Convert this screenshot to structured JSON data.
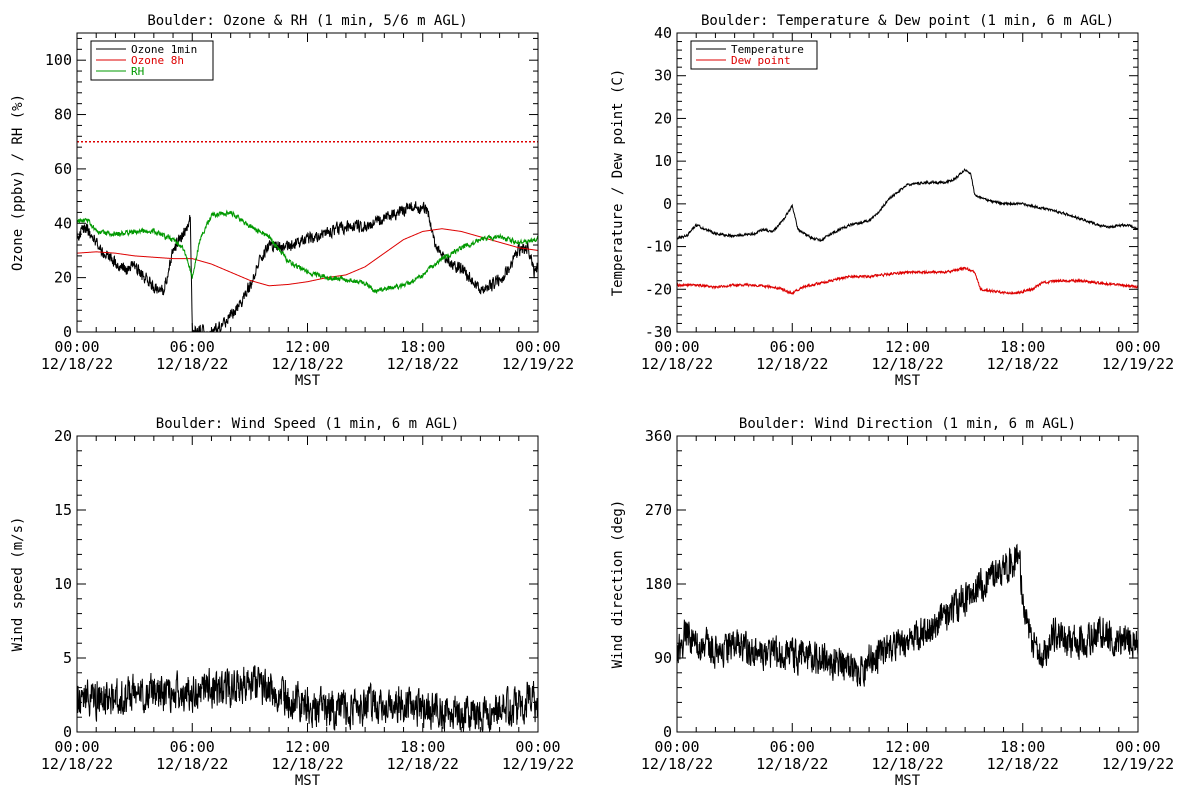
{
  "chart_data": [
    {
      "id": "ozone",
      "type": "line",
      "title": "Boulder: Ozone & RH (1 min, 5/6 m AGL)",
      "xlabel": "MST",
      "ylabel": "Ozone (ppbv) / RH (%)",
      "xlim": [
        0,
        24
      ],
      "ylim": [
        0,
        110
      ],
      "yticks": [
        0,
        20,
        40,
        60,
        80,
        100
      ],
      "xticks": [
        {
          "x": 0,
          "time": "00:00",
          "date": "12/18/22"
        },
        {
          "x": 6,
          "time": "06:00",
          "date": "12/18/22"
        },
        {
          "x": 12,
          "time": "12:00",
          "date": "12/18/22"
        },
        {
          "x": 18,
          "time": "18:00",
          "date": "12/18/22"
        },
        {
          "x": 24,
          "time": "00:00",
          "date": "12/19/22"
        }
      ],
      "legend": "top-left",
      "reference_line": {
        "y": 70,
        "color": "#dd0000",
        "style": "dotted"
      },
      "series": [
        {
          "name": "Ozone 1min",
          "color": "#000000",
          "noise": 2.0,
          "points": [
            [
              0,
              36
            ],
            [
              0.5,
              38
            ],
            [
              1,
              33
            ],
            [
              1.5,
              28
            ],
            [
              2,
              25
            ],
            [
              2.5,
              23
            ],
            [
              3,
              24
            ],
            [
              3.5,
              20
            ],
            [
              4,
              17
            ],
            [
              4.5,
              15
            ],
            [
              5,
              30
            ],
            [
              5.5,
              36
            ],
            [
              5.9,
              42
            ],
            [
              6.0,
              2
            ],
            [
              6.2,
              0
            ],
            [
              6.8,
              0
            ],
            [
              7.5,
              2
            ],
            [
              8,
              6
            ],
            [
              8.5,
              10
            ],
            [
              9,
              17
            ],
            [
              9.5,
              26
            ],
            [
              10,
              32
            ],
            [
              11,
              31
            ],
            [
              12,
              34
            ],
            [
              13,
              37
            ],
            [
              14,
              39
            ],
            [
              15,
              39
            ],
            [
              16,
              42
            ],
            [
              17,
              45
            ],
            [
              18,
              46
            ],
            [
              18.3,
              44
            ],
            [
              18.6,
              34
            ],
            [
              19,
              28
            ],
            [
              19.5,
              25
            ],
            [
              20,
              23
            ],
            [
              20.5,
              20
            ],
            [
              21,
              16
            ],
            [
              21.5,
              17
            ],
            [
              22,
              19
            ],
            [
              22.5,
              24
            ],
            [
              23,
              30
            ],
            [
              23.5,
              31
            ],
            [
              23.8,
              22
            ],
            [
              24,
              25
            ]
          ]
        },
        {
          "name": "Ozone 8h",
          "color": "#dd0000",
          "noise": 0,
          "points": [
            [
              0,
              29
            ],
            [
              1,
              29.5
            ],
            [
              2,
              29
            ],
            [
              3,
              28
            ],
            [
              4,
              27.5
            ],
            [
              5,
              27
            ],
            [
              6,
              27
            ],
            [
              7,
              25
            ],
            [
              8,
              22
            ],
            [
              9,
              19
            ],
            [
              10,
              17
            ],
            [
              11,
              17.5
            ],
            [
              12,
              18.5
            ],
            [
              13,
              20
            ],
            [
              14,
              21
            ],
            [
              15,
              24
            ],
            [
              16,
              29
            ],
            [
              17,
              34
            ],
            [
              18,
              37
            ],
            [
              19,
              38
            ],
            [
              20,
              37
            ],
            [
              21,
              35
            ],
            [
              22,
              33
            ],
            [
              23,
              31
            ],
            [
              24,
              30
            ]
          ]
        },
        {
          "name": "RH",
          "color": "#009900",
          "noise": 0.8,
          "points": [
            [
              0,
              41
            ],
            [
              0.6,
              41
            ],
            [
              1,
              37
            ],
            [
              2,
              36
            ],
            [
              3,
              37
            ],
            [
              4,
              37
            ],
            [
              5,
              34
            ],
            [
              5.6,
              30
            ],
            [
              6,
              20
            ],
            [
              6.4,
              34
            ],
            [
              7,
              43
            ],
            [
              8,
              44
            ],
            [
              9,
              39
            ],
            [
              10,
              35
            ],
            [
              11,
              26
            ],
            [
              12,
              22
            ],
            [
              13,
              20
            ],
            [
              14,
              19.5
            ],
            [
              15,
              18
            ],
            [
              15.5,
              15
            ],
            [
              16,
              16
            ],
            [
              17,
              17
            ],
            [
              18,
              21
            ],
            [
              19,
              27
            ],
            [
              20,
              31
            ],
            [
              21,
              34
            ],
            [
              22,
              35
            ],
            [
              23,
              33
            ],
            [
              24,
              34
            ]
          ]
        }
      ]
    },
    {
      "id": "temp",
      "type": "line",
      "title": "Boulder: Temperature & Dew point (1 min, 6 m AGL)",
      "xlabel": "MST",
      "ylabel": "Temperature / Dew point (C)",
      "xlim": [
        0,
        24
      ],
      "ylim": [
        -30,
        40
      ],
      "yticks": [
        -30,
        -20,
        -10,
        0,
        10,
        20,
        30,
        40
      ],
      "xticks": [
        {
          "x": 0,
          "time": "00:00",
          "date": "12/18/22"
        },
        {
          "x": 6,
          "time": "06:00",
          "date": "12/18/22"
        },
        {
          "x": 12,
          "time": "12:00",
          "date": "12/18/22"
        },
        {
          "x": 18,
          "time": "18:00",
          "date": "12/18/22"
        },
        {
          "x": 24,
          "time": "00:00",
          "date": "12/19/22"
        }
      ],
      "legend": "top-left",
      "series": [
        {
          "name": "Temperature",
          "color": "#000000",
          "noise": 0.25,
          "points": [
            [
              0,
              -8
            ],
            [
              0.5,
              -7.5
            ],
            [
              1,
              -5
            ],
            [
              1.5,
              -6
            ],
            [
              2,
              -7
            ],
            [
              3,
              -7.5
            ],
            [
              4,
              -7
            ],
            [
              4.5,
              -6
            ],
            [
              5,
              -6.5
            ],
            [
              5.5,
              -4
            ],
            [
              6,
              -0.5
            ],
            [
              6.3,
              -6
            ],
            [
              7,
              -8
            ],
            [
              7.5,
              -8.5
            ],
            [
              8,
              -7
            ],
            [
              9,
              -5
            ],
            [
              10,
              -4
            ],
            [
              10.5,
              -2
            ],
            [
              11,
              1
            ],
            [
              12,
              4.5
            ],
            [
              13,
              5
            ],
            [
              14,
              5
            ],
            [
              14.5,
              6
            ],
            [
              15,
              8
            ],
            [
              15.3,
              7
            ],
            [
              15.5,
              2
            ],
            [
              16,
              1
            ],
            [
              17,
              0
            ],
            [
              18,
              0
            ],
            [
              19,
              -1
            ],
            [
              20,
              -2
            ],
            [
              21,
              -3.5
            ],
            [
              22,
              -5
            ],
            [
              22.5,
              -5.5
            ],
            [
              23,
              -5
            ],
            [
              23.5,
              -5
            ],
            [
              24,
              -6
            ]
          ]
        },
        {
          "name": "Dew point",
          "color": "#dd0000",
          "noise": 0.25,
          "points": [
            [
              0,
              -19
            ],
            [
              1,
              -19
            ],
            [
              2,
              -19.5
            ],
            [
              3,
              -19
            ],
            [
              4,
              -19
            ],
            [
              5,
              -19.5
            ],
            [
              5.5,
              -20
            ],
            [
              6,
              -21
            ],
            [
              6.5,
              -19.5
            ],
            [
              7,
              -19
            ],
            [
              8,
              -18
            ],
            [
              9,
              -17
            ],
            [
              10,
              -17
            ],
            [
              11,
              -16.5
            ],
            [
              12,
              -16
            ],
            [
              13,
              -16
            ],
            [
              14,
              -16
            ],
            [
              15,
              -15
            ],
            [
              15.5,
              -16
            ],
            [
              15.8,
              -20
            ],
            [
              16.5,
              -20.5
            ],
            [
              17.5,
              -21
            ],
            [
              18.5,
              -20
            ],
            [
              19,
              -18.5
            ],
            [
              20,
              -18
            ],
            [
              21,
              -18
            ],
            [
              22,
              -18.5
            ],
            [
              23,
              -19
            ],
            [
              24,
              -19.5
            ]
          ]
        }
      ]
    },
    {
      "id": "wspd",
      "type": "line",
      "title": "Boulder: Wind Speed (1 min, 6 m AGL)",
      "xlabel": "MST",
      "ylabel": "Wind speed (m/s)",
      "xlim": [
        0,
        24
      ],
      "ylim": [
        0,
        20
      ],
      "yticks": [
        0,
        5,
        10,
        15,
        20
      ],
      "xticks": [
        {
          "x": 0,
          "time": "00:00",
          "date": "12/18/22"
        },
        {
          "x": 6,
          "time": "06:00",
          "date": "12/18/22"
        },
        {
          "x": 12,
          "time": "12:00",
          "date": "12/18/22"
        },
        {
          "x": 18,
          "time": "18:00",
          "date": "12/18/22"
        },
        {
          "x": 24,
          "time": "00:00",
          "date": "12/19/22"
        }
      ],
      "legend": "none",
      "series": [
        {
          "name": "",
          "color": "#000000",
          "noise": 1.1,
          "floor": 0,
          "points": [
            [
              0,
              2.5
            ],
            [
              1,
              2.3
            ],
            [
              2,
              2.2
            ],
            [
              3,
              2.5
            ],
            [
              4,
              2.6
            ],
            [
              5,
              2.7
            ],
            [
              6,
              2.6
            ],
            [
              7,
              3.0
            ],
            [
              8,
              3.0
            ],
            [
              9,
              3.2
            ],
            [
              10,
              2.8
            ],
            [
              11,
              2.2
            ],
            [
              12,
              1.8
            ],
            [
              13,
              1.6
            ],
            [
              14,
              1.4
            ],
            [
              15,
              1.8
            ],
            [
              16,
              1.9
            ],
            [
              17,
              1.8
            ],
            [
              18,
              1.4
            ],
            [
              19,
              1.3
            ],
            [
              20,
              1.2
            ],
            [
              21,
              1.3
            ],
            [
              22,
              1.4
            ],
            [
              23,
              1.6
            ],
            [
              23.7,
              2.8
            ],
            [
              24,
              1.2
            ]
          ]
        }
      ]
    },
    {
      "id": "wdir",
      "type": "line",
      "title": "Boulder: Wind Direction (1 min, 6 m AGL)",
      "xlabel": "MST",
      "ylabel": "Wind direction (deg)",
      "xlim": [
        0,
        24
      ],
      "ylim": [
        0,
        360
      ],
      "yticks": [
        0,
        90,
        180,
        270,
        360
      ],
      "xticks": [
        {
          "x": 0,
          "time": "00:00",
          "date": "12/18/22"
        },
        {
          "x": 6,
          "time": "06:00",
          "date": "12/18/22"
        },
        {
          "x": 12,
          "time": "12:00",
          "date": "12/18/22"
        },
        {
          "x": 18,
          "time": "18:00",
          "date": "12/18/22"
        },
        {
          "x": 24,
          "time": "00:00",
          "date": "12/19/22"
        }
      ],
      "legend": "none",
      "series": [
        {
          "name": "",
          "color": "#000000",
          "noise": 18,
          "floor": 5,
          "points": [
            [
              0,
              100
            ],
            [
              0.5,
              120
            ],
            [
              1,
              110
            ],
            [
              2,
              100
            ],
            [
              3,
              105
            ],
            [
              4,
              100
            ],
            [
              5,
              95
            ],
            [
              6,
              95
            ],
            [
              7,
              90
            ],
            [
              8,
              85
            ],
            [
              9,
              80
            ],
            [
              9.5,
              75
            ],
            [
              10,
              85
            ],
            [
              11,
              100
            ],
            [
              12,
              110
            ],
            [
              13,
              120
            ],
            [
              14,
              140
            ],
            [
              15,
              160
            ],
            [
              16,
              185
            ],
            [
              17,
              195
            ],
            [
              17.5,
              205
            ],
            [
              17.8,
              215
            ],
            [
              18,
              160
            ],
            [
              18.5,
              110
            ],
            [
              19,
              90
            ],
            [
              19.5,
              120
            ],
            [
              20,
              115
            ],
            [
              21,
              110
            ],
            [
              22,
              120
            ],
            [
              23,
              110
            ],
            [
              24,
              115
            ]
          ]
        }
      ]
    }
  ]
}
